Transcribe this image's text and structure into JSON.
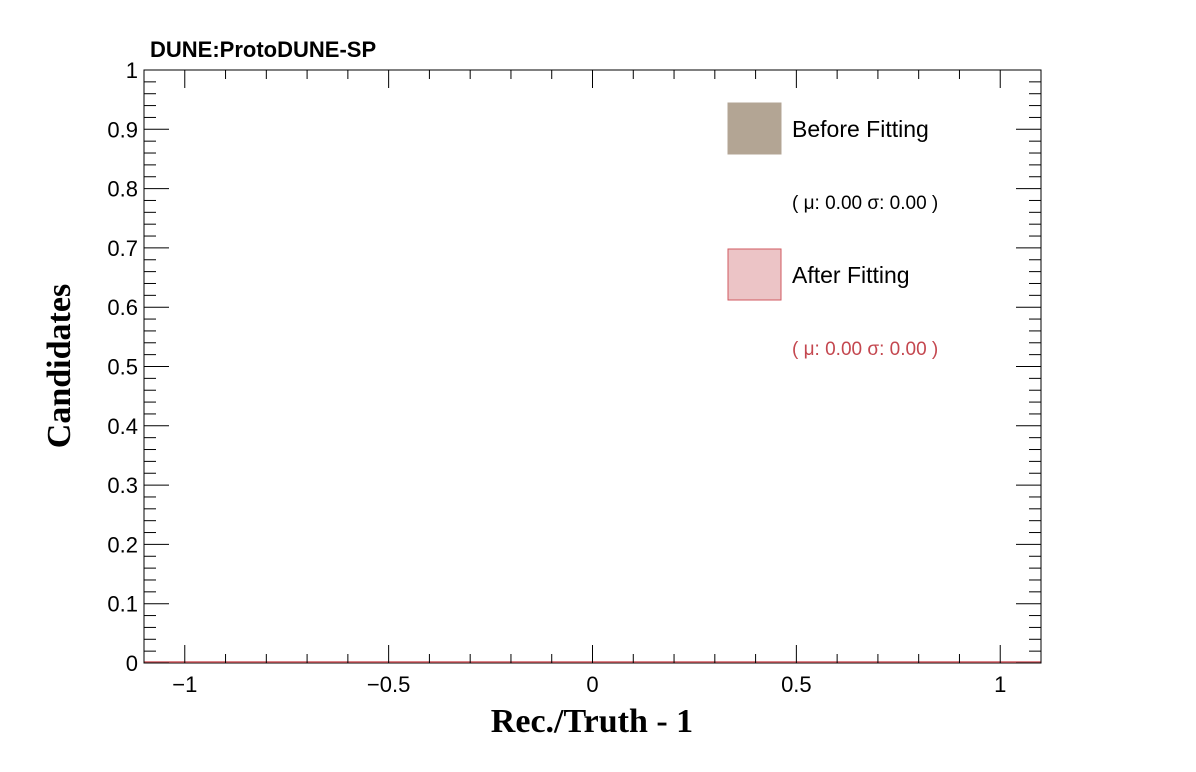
{
  "chart_data": {
    "type": "bar",
    "title": "DUNE:ProtoDUNE-SP",
    "xlabel": "Rec./Truth - 1",
    "ylabel": "Candidates",
    "xlim": [
      -1.1,
      1.1
    ],
    "ylim": [
      0,
      1
    ],
    "x_ticks": [
      -1,
      -0.5,
      0,
      0.5,
      1
    ],
    "x_tick_labels": [
      "−1",
      "−0.5",
      "0",
      "0.5",
      "1"
    ],
    "y_ticks": [
      0,
      0.1,
      0.2,
      0.3,
      0.4,
      0.5,
      0.6,
      0.7,
      0.8,
      0.9,
      1
    ],
    "y_tick_labels": [
      "0",
      "0.1",
      "0.2",
      "0.3",
      "0.4",
      "0.5",
      "0.6",
      "0.7",
      "0.8",
      "0.9",
      "1"
    ],
    "grid": false,
    "legend_position": "top-right",
    "series": [
      {
        "name": "Before Fitting",
        "stats": "( μ: 0.00 σ: 0.00 )",
        "fill": "#b3a594",
        "line": "#b3a594",
        "stats_color": "#000000",
        "values": []
      },
      {
        "name": "After Fitting",
        "stats": "( μ: 0.00 σ: 0.00 )",
        "fill": "#ecc4c6",
        "line": "#d05a60",
        "stats_color": "#c4474f",
        "values": []
      }
    ]
  }
}
